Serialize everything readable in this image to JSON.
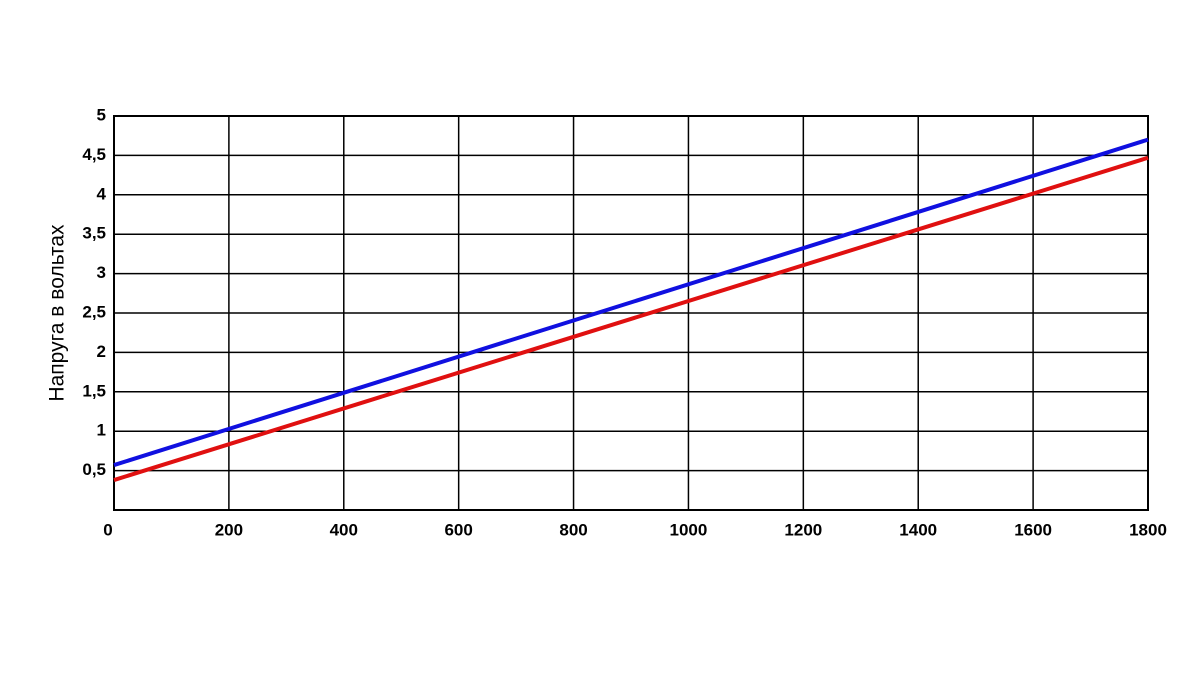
{
  "chart_data": {
    "type": "line",
    "y_label": "Напруга в вольтах",
    "x": [
      0,
      1800
    ],
    "series": [
      {
        "color": "#1010e0",
        "values": [
          0.57,
          4.7
        ]
      },
      {
        "color": "#e01010",
        "values": [
          0.38,
          4.47
        ]
      }
    ],
    "xlim": [
      0,
      1800
    ],
    "xticks": [
      0,
      200,
      400,
      600,
      800,
      1000,
      1200,
      1400,
      1600,
      1800
    ],
    "ylim": [
      0,
      5
    ],
    "yticks": [
      {
        "value": 0.5,
        "label": "0,5"
      },
      1,
      {
        "value": 1.5,
        "label": "1,5"
      },
      2,
      {
        "value": 2.5,
        "label": "2,5"
      },
      3,
      {
        "value": 3.5,
        "label": "3,5"
      },
      4,
      {
        "value": 4.5,
        "label": "4,5"
      },
      5
    ],
    "grid": true
  }
}
